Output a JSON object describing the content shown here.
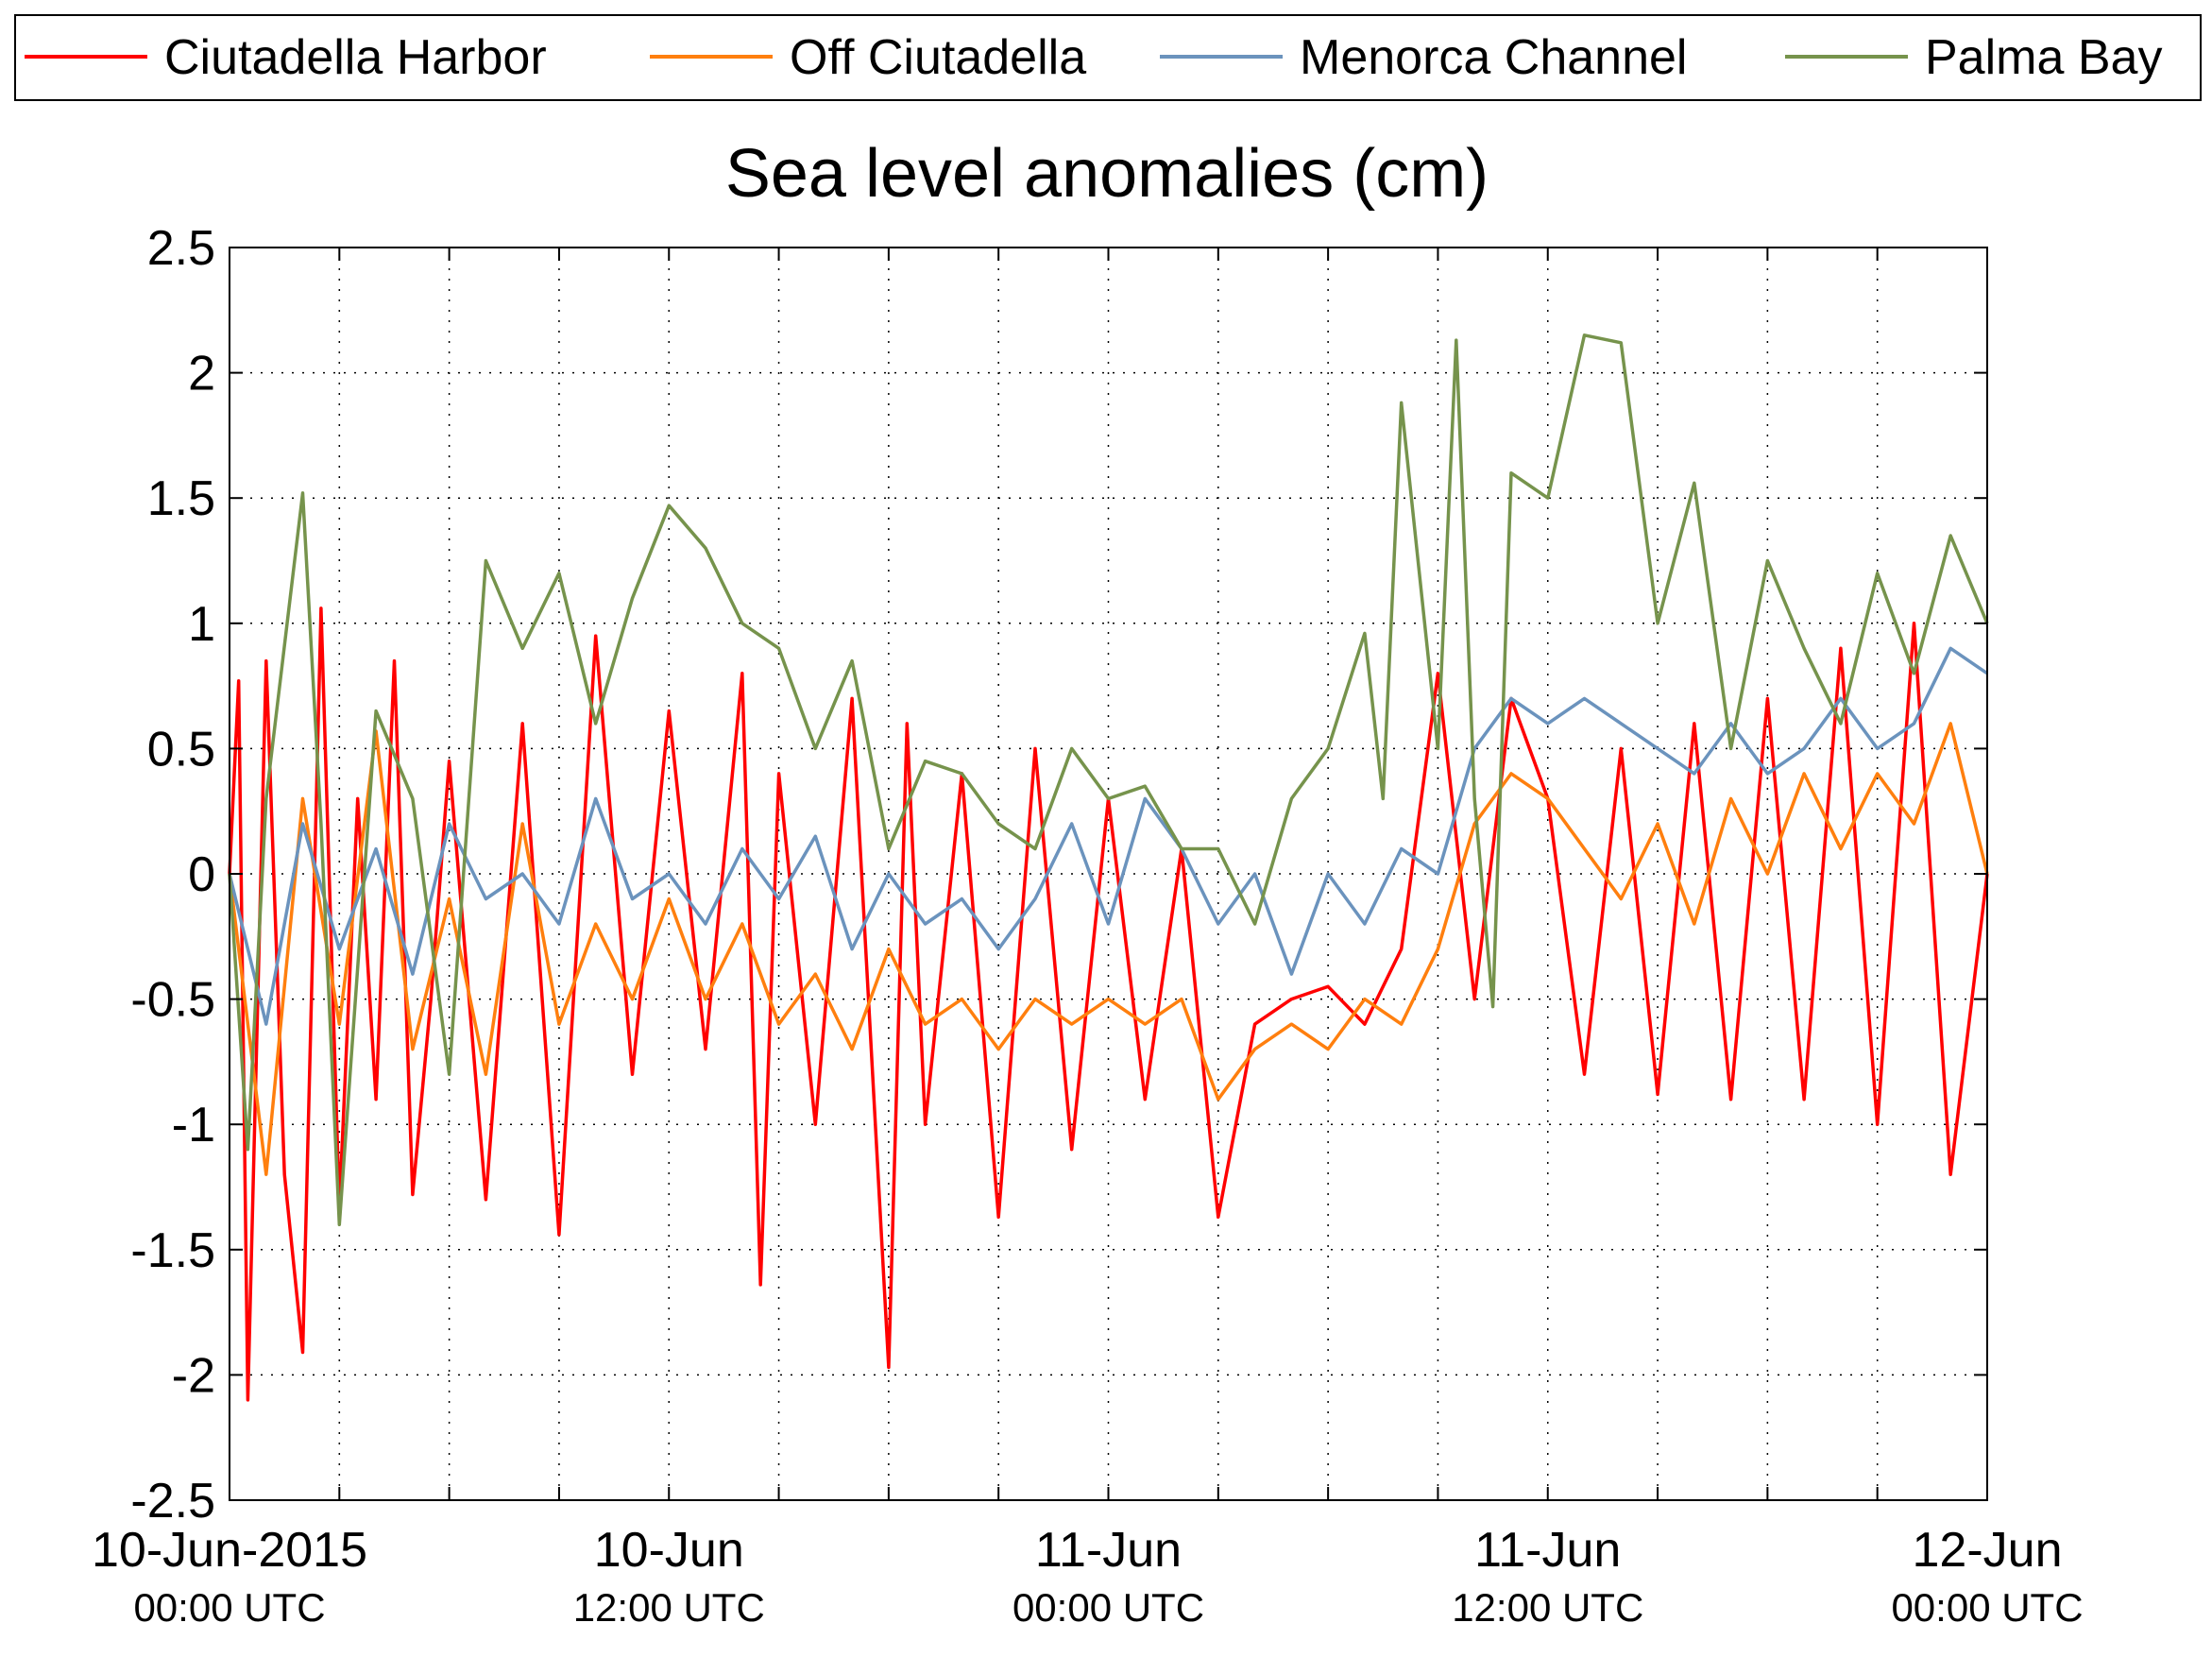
{
  "chart_data": {
    "type": "line",
    "title": "Sea level anomalies (cm)",
    "xlabel": "",
    "ylabel": "",
    "ylim": [
      -2.5,
      2.5
    ],
    "yticks": [
      "2.5",
      "2",
      "1.5",
      "1",
      "0.5",
      "0",
      "-0.5",
      "-1",
      "-1.5",
      "-2",
      "-2.5"
    ],
    "xlim": [
      "2015-06-10T00:00Z",
      "2015-06-12T00:00Z"
    ],
    "xtick_labels": [
      {
        "line1": "10-Jun-2015",
        "line2": "00:00 UTC"
      },
      {
        "line1": "10-Jun",
        "line2": "12:00 UTC"
      },
      {
        "line1": "11-Jun",
        "line2": "00:00 UTC"
      },
      {
        "line1": "11-Jun",
        "line2": "12:00 UTC"
      },
      {
        "line1": "12-Jun",
        "line2": "00:00 UTC"
      }
    ],
    "grid": true,
    "legend_position": "top",
    "series": [
      {
        "name": "Ciutadella Harbor",
        "color": "#ff0000",
        "x": [
          "2015-06-10T00:00Z",
          "2015-06-10T00:15Z",
          "2015-06-10T00:30Z",
          "2015-06-10T01:00Z",
          "2015-06-10T01:30Z",
          "2015-06-10T02:00Z",
          "2015-06-10T02:30Z",
          "2015-06-10T03:00Z",
          "2015-06-10T03:30Z",
          "2015-06-10T04:00Z",
          "2015-06-10T04:30Z",
          "2015-06-10T05:00Z",
          "2015-06-10T05:30Z",
          "2015-06-10T06:00Z",
          "2015-06-10T07:00Z",
          "2015-06-10T08:00Z",
          "2015-06-10T09:00Z",
          "2015-06-10T10:00Z",
          "2015-06-10T11:00Z",
          "2015-06-10T12:00Z",
          "2015-06-10T13:00Z",
          "2015-06-10T14:00Z",
          "2015-06-10T14:30Z",
          "2015-06-10T15:00Z",
          "2015-06-10T16:00Z",
          "2015-06-10T17:00Z",
          "2015-06-10T18:00Z",
          "2015-06-10T18:30Z",
          "2015-06-10T19:00Z",
          "2015-06-10T20:00Z",
          "2015-06-10T21:00Z",
          "2015-06-10T22:00Z",
          "2015-06-10T23:00Z",
          "2015-06-11T00:00Z",
          "2015-06-11T01:00Z",
          "2015-06-11T02:00Z",
          "2015-06-11T03:00Z",
          "2015-06-11T04:00Z",
          "2015-06-11T05:00Z",
          "2015-06-11T06:00Z",
          "2015-06-11T07:00Z",
          "2015-06-11T08:00Z",
          "2015-06-11T09:00Z",
          "2015-06-11T10:00Z",
          "2015-06-11T11:00Z",
          "2015-06-11T12:00Z",
          "2015-06-11T13:00Z",
          "2015-06-11T14:00Z",
          "2015-06-11T15:00Z",
          "2015-06-11T16:00Z",
          "2015-06-11T17:00Z",
          "2015-06-11T18:00Z",
          "2015-06-11T19:00Z",
          "2015-06-11T20:00Z",
          "2015-06-11T21:00Z",
          "2015-06-11T22:00Z",
          "2015-06-11T23:00Z",
          "2015-06-12T00:00Z"
        ],
        "values": [
          0.0,
          0.77,
          -2.1,
          0.85,
          -1.2,
          -1.91,
          1.06,
          -1.33,
          0.3,
          -0.9,
          0.85,
          -1.28,
          -0.5,
          0.45,
          -1.3,
          0.6,
          -1.44,
          0.95,
          -0.8,
          0.65,
          -0.7,
          0.8,
          -1.64,
          0.4,
          -1.0,
          0.7,
          -1.97,
          0.6,
          -1.0,
          0.4,
          -1.37,
          0.5,
          -1.1,
          0.3,
          -0.9,
          0.1,
          -1.37,
          -0.6,
          -0.5,
          -0.45,
          -0.6,
          -0.3,
          0.8,
          -0.5,
          0.7,
          0.3,
          -0.8,
          0.5,
          -0.88,
          0.6,
          -0.9,
          0.7,
          -0.9,
          0.9,
          -1.0,
          1.0,
          -1.2,
          0.0
        ]
      },
      {
        "name": "Off Ciutadella",
        "color": "#ff7f0e",
        "x": [
          "2015-06-10T00:00Z",
          "2015-06-10T01:00Z",
          "2015-06-10T02:00Z",
          "2015-06-10T03:00Z",
          "2015-06-10T04:00Z",
          "2015-06-10T05:00Z",
          "2015-06-10T06:00Z",
          "2015-06-10T07:00Z",
          "2015-06-10T08:00Z",
          "2015-06-10T09:00Z",
          "2015-06-10T10:00Z",
          "2015-06-10T11:00Z",
          "2015-06-10T12:00Z",
          "2015-06-10T13:00Z",
          "2015-06-10T14:00Z",
          "2015-06-10T15:00Z",
          "2015-06-10T16:00Z",
          "2015-06-10T17:00Z",
          "2015-06-10T18:00Z",
          "2015-06-10T19:00Z",
          "2015-06-10T20:00Z",
          "2015-06-10T21:00Z",
          "2015-06-10T22:00Z",
          "2015-06-10T23:00Z",
          "2015-06-11T00:00Z",
          "2015-06-11T01:00Z",
          "2015-06-11T02:00Z",
          "2015-06-11T03:00Z",
          "2015-06-11T04:00Z",
          "2015-06-11T05:00Z",
          "2015-06-11T06:00Z",
          "2015-06-11T07:00Z",
          "2015-06-11T08:00Z",
          "2015-06-11T09:00Z",
          "2015-06-11T10:00Z",
          "2015-06-11T11:00Z",
          "2015-06-11T12:00Z",
          "2015-06-11T13:00Z",
          "2015-06-11T14:00Z",
          "2015-06-11T15:00Z",
          "2015-06-11T16:00Z",
          "2015-06-11T17:00Z",
          "2015-06-11T18:00Z",
          "2015-06-11T19:00Z",
          "2015-06-11T20:00Z",
          "2015-06-11T21:00Z",
          "2015-06-11T22:00Z",
          "2015-06-11T23:00Z",
          "2015-06-12T00:00Z"
        ],
        "values": [
          0.0,
          -1.2,
          0.3,
          -0.6,
          0.57,
          -0.7,
          -0.1,
          -0.8,
          0.2,
          -0.6,
          -0.2,
          -0.5,
          -0.1,
          -0.5,
          -0.2,
          -0.6,
          -0.4,
          -0.7,
          -0.3,
          -0.6,
          -0.5,
          -0.7,
          -0.5,
          -0.6,
          -0.5,
          -0.6,
          -0.5,
          -0.9,
          -0.7,
          -0.6,
          -0.7,
          -0.5,
          -0.6,
          -0.3,
          0.2,
          0.4,
          0.3,
          0.1,
          -0.1,
          0.2,
          -0.2,
          0.3,
          0.0,
          0.4,
          0.1,
          0.4,
          0.2,
          0.6,
          0.0
        ]
      },
      {
        "name": "Menorca Channel",
        "color": "#6b93bd",
        "x": [
          "2015-06-10T00:00Z",
          "2015-06-10T01:00Z",
          "2015-06-10T02:00Z",
          "2015-06-10T03:00Z",
          "2015-06-10T04:00Z",
          "2015-06-10T05:00Z",
          "2015-06-10T06:00Z",
          "2015-06-10T07:00Z",
          "2015-06-10T08:00Z",
          "2015-06-10T09:00Z",
          "2015-06-10T10:00Z",
          "2015-06-10T11:00Z",
          "2015-06-10T12:00Z",
          "2015-06-10T13:00Z",
          "2015-06-10T14:00Z",
          "2015-06-10T15:00Z",
          "2015-06-10T16:00Z",
          "2015-06-10T17:00Z",
          "2015-06-10T18:00Z",
          "2015-06-10T19:00Z",
          "2015-06-10T20:00Z",
          "2015-06-10T21:00Z",
          "2015-06-10T22:00Z",
          "2015-06-10T23:00Z",
          "2015-06-11T00:00Z",
          "2015-06-11T01:00Z",
          "2015-06-11T02:00Z",
          "2015-06-11T03:00Z",
          "2015-06-11T04:00Z",
          "2015-06-11T05:00Z",
          "2015-06-11T06:00Z",
          "2015-06-11T07:00Z",
          "2015-06-11T08:00Z",
          "2015-06-11T09:00Z",
          "2015-06-11T10:00Z",
          "2015-06-11T11:00Z",
          "2015-06-11T12:00Z",
          "2015-06-11T13:00Z",
          "2015-06-11T14:00Z",
          "2015-06-11T15:00Z",
          "2015-06-11T16:00Z",
          "2015-06-11T17:00Z",
          "2015-06-11T18:00Z",
          "2015-06-11T19:00Z",
          "2015-06-11T20:00Z",
          "2015-06-11T21:00Z",
          "2015-06-11T22:00Z",
          "2015-06-11T23:00Z",
          "2015-06-12T00:00Z"
        ],
        "values": [
          0.0,
          -0.6,
          0.2,
          -0.3,
          0.1,
          -0.4,
          0.2,
          -0.1,
          0.0,
          -0.2,
          0.3,
          -0.1,
          0.0,
          -0.2,
          0.1,
          -0.1,
          0.15,
          -0.3,
          0.0,
          -0.2,
          -0.1,
          -0.3,
          -0.1,
          0.2,
          -0.2,
          0.3,
          0.1,
          -0.2,
          0.0,
          -0.4,
          0.0,
          -0.2,
          0.1,
          0.0,
          0.5,
          0.7,
          0.6,
          0.7,
          0.6,
          0.5,
          0.4,
          0.6,
          0.4,
          0.5,
          0.7,
          0.5,
          0.6,
          0.9,
          0.8
        ]
      },
      {
        "name": "Palma Bay",
        "color": "#76934c",
        "x": [
          "2015-06-10T00:00Z",
          "2015-06-10T00:30Z",
          "2015-06-10T01:00Z",
          "2015-06-10T02:00Z",
          "2015-06-10T02:30Z",
          "2015-06-10T03:00Z",
          "2015-06-10T04:00Z",
          "2015-06-10T05:00Z",
          "2015-06-10T06:00Z",
          "2015-06-10T07:00Z",
          "2015-06-10T08:00Z",
          "2015-06-10T09:00Z",
          "2015-06-10T10:00Z",
          "2015-06-10T11:00Z",
          "2015-06-10T12:00Z",
          "2015-06-10T13:00Z",
          "2015-06-10T14:00Z",
          "2015-06-10T15:00Z",
          "2015-06-10T16:00Z",
          "2015-06-10T17:00Z",
          "2015-06-10T18:00Z",
          "2015-06-10T19:00Z",
          "2015-06-10T20:00Z",
          "2015-06-10T21:00Z",
          "2015-06-10T22:00Z",
          "2015-06-10T23:00Z",
          "2015-06-11T00:00Z",
          "2015-06-11T01:00Z",
          "2015-06-11T02:00Z",
          "2015-06-11T03:00Z",
          "2015-06-11T04:00Z",
          "2015-06-11T05:00Z",
          "2015-06-11T06:00Z",
          "2015-06-11T07:00Z",
          "2015-06-11T07:30Z",
          "2015-06-11T08:00Z",
          "2015-06-11T09:00Z",
          "2015-06-11T09:30Z",
          "2015-06-11T10:00Z",
          "2015-06-11T10:30Z",
          "2015-06-11T11:00Z",
          "2015-06-11T12:00Z",
          "2015-06-11T13:00Z",
          "2015-06-11T14:00Z",
          "2015-06-11T15:00Z",
          "2015-06-11T16:00Z",
          "2015-06-11T17:00Z",
          "2015-06-11T18:00Z",
          "2015-06-11T19:00Z",
          "2015-06-11T20:00Z",
          "2015-06-11T21:00Z",
          "2015-06-11T22:00Z",
          "2015-06-11T23:00Z",
          "2015-06-12T00:00Z"
        ],
        "values": [
          0.0,
          -1.1,
          0.3,
          1.52,
          0.2,
          -1.4,
          0.65,
          0.3,
          -0.8,
          1.25,
          0.9,
          1.2,
          0.6,
          1.1,
          1.47,
          1.3,
          1.0,
          0.9,
          0.5,
          0.85,
          0.1,
          0.45,
          0.4,
          0.2,
          0.1,
          0.5,
          0.3,
          0.35,
          0.1,
          0.1,
          -0.2,
          0.3,
          0.5,
          0.96,
          0.3,
          1.88,
          0.5,
          2.13,
          0.3,
          -0.53,
          1.6,
          1.5,
          2.15,
          2.12,
          1.0,
          1.56,
          0.5,
          1.25,
          0.9,
          0.6,
          1.2,
          0.8,
          1.35,
          1.0
        ]
      }
    ]
  }
}
